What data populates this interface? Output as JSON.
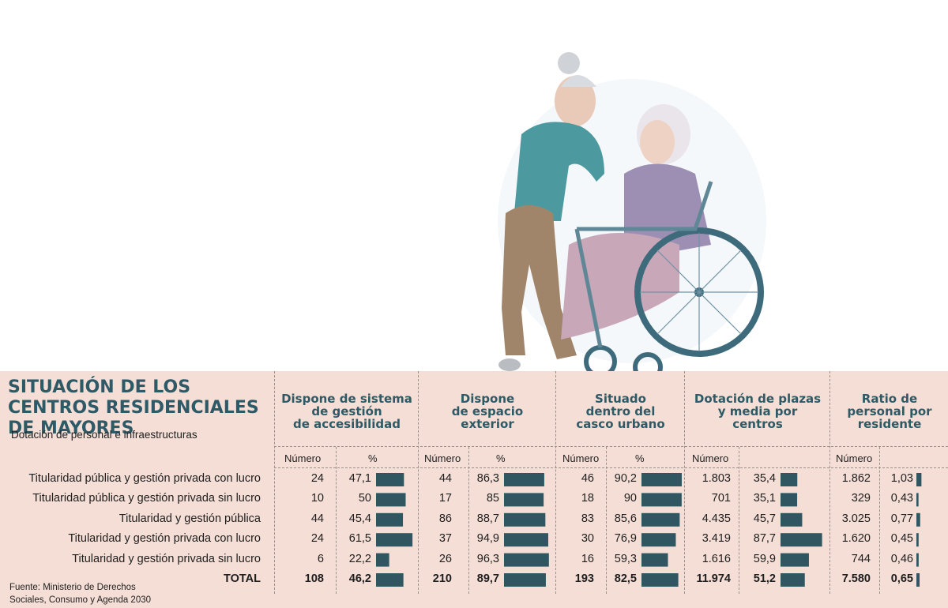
{
  "title": "SITUACIÓN DE LOS CENTROS RESIDENCIALES DE MAYORES",
  "subtitle": "Dotación de personal e infraestructuras",
  "source": "Fuente:  Ministerio de Derechos Sociales, Consumo y Agenda 2030",
  "colors": {
    "bar": "#2f5661",
    "panel": "#f4ded6",
    "heading": "#2d5a66"
  },
  "columns": [
    {
      "heading": "Dispone de sistema\nde gestión\nde accesibilidad",
      "sub_number": "Número",
      "sub_value": "%"
    },
    {
      "heading": "Dispone\nde espacio\nexterior",
      "sub_number": "Número",
      "sub_value": "%"
    },
    {
      "heading": "Situado\ndentro del\ncasco urbano",
      "sub_number": "Número",
      "sub_value": "%"
    },
    {
      "heading": "Dotación de plazas\ny media por\ncentros",
      "sub_number": "Número",
      "sub_value": ""
    },
    {
      "heading": "Ratio de\npersonal por\nresidente",
      "sub_number": "Número",
      "sub_value": ""
    }
  ],
  "rows": [
    {
      "label": "Titularidad pública y gestión privada con lucro",
      "cells": [
        [
          "24",
          "47,1"
        ],
        [
          "44",
          "86,3"
        ],
        [
          "46",
          "90,2"
        ],
        [
          "1.803",
          "35,4"
        ],
        [
          "1.862",
          "1,03"
        ]
      ]
    },
    {
      "label": "Titularidad pública y gestión privada sin lucro",
      "cells": [
        [
          "10",
          "50"
        ],
        [
          "17",
          "85"
        ],
        [
          "18",
          "90"
        ],
        [
          "701",
          "35,1"
        ],
        [
          "329",
          "0,43"
        ]
      ]
    },
    {
      "label": "Titularidad y gestión pública",
      "cells": [
        [
          "44",
          "45,4"
        ],
        [
          "86",
          "88,7"
        ],
        [
          "83",
          "85,6"
        ],
        [
          "4.435",
          "45,7"
        ],
        [
          "3.025",
          "0,77"
        ]
      ]
    },
    {
      "label": "Titularidad y gestión privada con lucro",
      "cells": [
        [
          "24",
          "61,5"
        ],
        [
          "37",
          "94,9"
        ],
        [
          "30",
          "76,9"
        ],
        [
          "3.419",
          "87,7"
        ],
        [
          "1.620",
          "0,45"
        ]
      ]
    },
    {
      "label": "Titularidad y gestión privada sin lucro",
      "cells": [
        [
          "6",
          "22,2"
        ],
        [
          "26",
          "96,3"
        ],
        [
          "16",
          "59,3"
        ],
        [
          "1.616",
          "59,9"
        ],
        [
          "744",
          "0,46"
        ]
      ]
    },
    {
      "label": "TOTAL",
      "cells": [
        [
          "108",
          "46,2"
        ],
        [
          "210",
          "89,7"
        ],
        [
          "193",
          "82,5"
        ],
        [
          "11.974",
          "51,2"
        ],
        [
          "7.580",
          "0,65"
        ]
      ]
    }
  ],
  "chart_data": {
    "type": "table",
    "title": "SITUACIÓN DE LOS CENTROS RESIDENCIALES DE MAYORES",
    "subtitle": "Dotación de personal e infraestructuras",
    "categories": [
      "Titularidad pública y gestión privada con lucro",
      "Titularidad pública y gestión privada sin lucro",
      "Titularidad y gestión pública",
      "Titularidad y gestión privada con lucro",
      "Titularidad y gestión privada sin lucro",
      "TOTAL"
    ],
    "series": [
      {
        "name": "Dispone de sistema de gestión de accesibilidad — Número",
        "values": [
          24,
          10,
          44,
          24,
          6,
          108
        ]
      },
      {
        "name": "Dispone de sistema de gestión de accesibilidad — %",
        "values": [
          47.1,
          50,
          45.4,
          61.5,
          22.2,
          46.2
        ]
      },
      {
        "name": "Dispone de espacio exterior — Número",
        "values": [
          44,
          17,
          86,
          37,
          26,
          210
        ]
      },
      {
        "name": "Dispone de espacio exterior — %",
        "values": [
          86.3,
          85,
          88.7,
          94.9,
          96.3,
          89.7
        ]
      },
      {
        "name": "Situado dentro del casco urbano — Número",
        "values": [
          46,
          18,
          83,
          30,
          16,
          193
        ]
      },
      {
        "name": "Situado dentro del casco urbano — %",
        "values": [
          90.2,
          90,
          85.6,
          76.9,
          59.3,
          82.5
        ]
      },
      {
        "name": "Dotación de plazas y media por centros — Número",
        "values": [
          1803,
          701,
          4435,
          3419,
          1616,
          11974
        ]
      },
      {
        "name": "Dotación de plazas y media por centros",
        "values": [
          35.4,
          35.1,
          45.7,
          87.7,
          59.9,
          51.2
        ]
      },
      {
        "name": "Ratio de personal por residente — Número",
        "values": [
          1862,
          329,
          3025,
          1620,
          744,
          7580
        ]
      },
      {
        "name": "Ratio de personal por residente",
        "values": [
          1.03,
          0.43,
          0.77,
          0.45,
          0.46,
          0.65
        ]
      }
    ]
  }
}
